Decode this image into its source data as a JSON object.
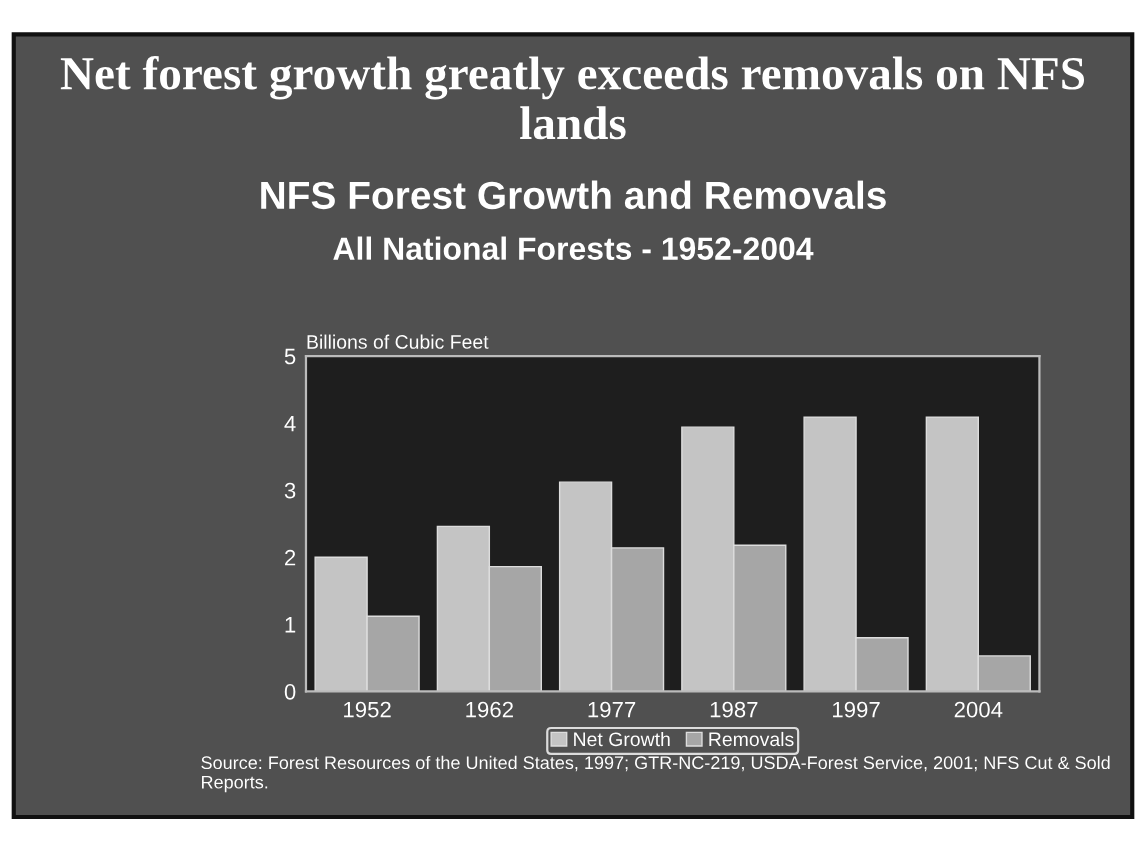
{
  "chart_data": {
    "type": "bar",
    "title": "Net forest growth greatly exceeds removals on NFS lands",
    "subtitle": "NFS Forest Growth and Removals\nAll National Forests - 1952-2004",
    "ylabel": "Billions of Cubic Feet",
    "categories": [
      "1952",
      "1962",
      "1977",
      "1987",
      "1997",
      "2004"
    ],
    "series": [
      {
        "name": "Net Growth",
        "color": "#c4c4c4",
        "values": [
          2.0,
          2.46,
          3.12,
          3.94,
          4.09,
          4.09
        ]
      },
      {
        "name": "Removals",
        "color": "#a6a6a6",
        "values": [
          1.12,
          1.86,
          2.14,
          2.18,
          0.8,
          0.53
        ]
      }
    ],
    "ylim": [
      0,
      5
    ],
    "yticks": [
      0,
      1,
      2,
      3,
      4,
      5
    ],
    "grid": false,
    "legend": "bottom",
    "annotations": [
      "Source: Forest Resources of the United States, 1997; GTR-NC-219, USDA-Forest Service, 2001; NFS Cut & Sold Reports."
    ]
  }
}
